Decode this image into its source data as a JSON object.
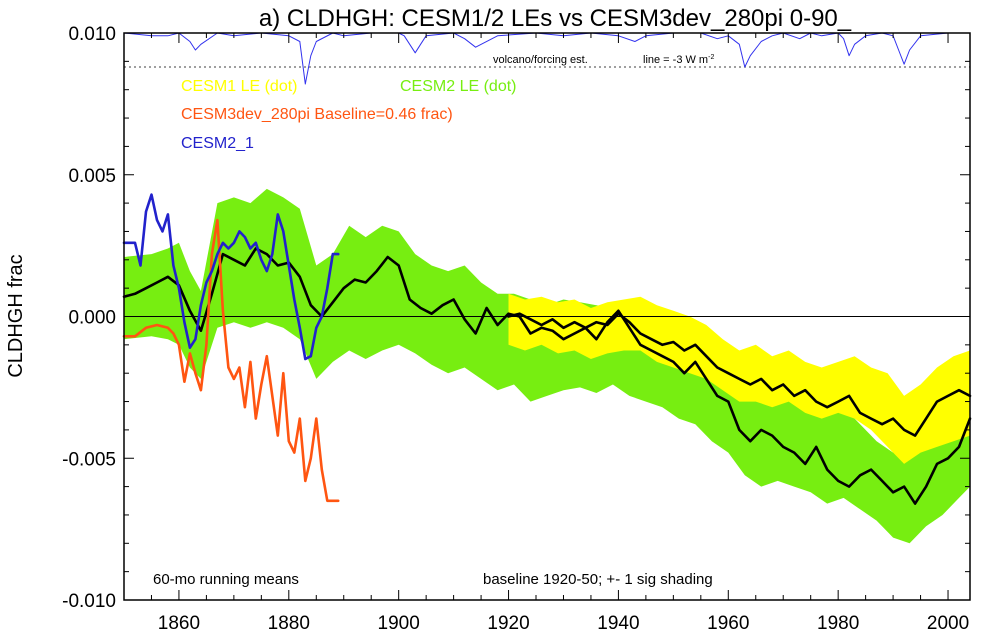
{
  "chart_data": {
    "type": "line",
    "title": "a) CLDHGH: CESM1/2 LEs vs CESM3dev_280pi 0-90_",
    "ylabel": "CLDHGH frac",
    "xlim": [
      1850,
      2004
    ],
    "ylim": [
      -0.01,
      0.01
    ],
    "x_ticks": [
      1860,
      1880,
      1900,
      1920,
      1940,
      1960,
      1980,
      2000
    ],
    "x_tick_labels": [
      "1860",
      "1880",
      "1900",
      "1920",
      "1940",
      "1960",
      "1980",
      "2000"
    ],
    "y_ticks": [
      0.01,
      0.005,
      0.0,
      -0.005,
      -0.01
    ],
    "y_tick_labels": [
      "0.010",
      "0.005",
      "0.000",
      "-0.005",
      "-0.010"
    ],
    "annotations": {
      "volcano": "volcano/forcing est.",
      "line_note": "line = -3 W m",
      "line_note_sup": "-2",
      "running": "60-mo running means",
      "baseline": "baseline 1920-50; +- 1 sig shading"
    },
    "legend": [
      {
        "label": "CESM1 LE (dot)",
        "color": "#ffff00"
      },
      {
        "label": "CESM2 LE (dot)",
        "color": "#77ee11"
      },
      {
        "label": "CESM3dev_280pi Baseline=0.46 frac)",
        "color": "#ff5511"
      },
      {
        "label": "CESM2_1",
        "color": "#2222cc"
      }
    ],
    "colors": {
      "cesm1_band": "#ffff00",
      "cesm2_band": "#77ee11",
      "ensemble_mean": "#000000",
      "cesm3dev": "#ff5511",
      "cesm2_1": "#2222cc",
      "volcano": "#3333ee",
      "zero_line": "#000000",
      "dotted_line": "#666666"
    },
    "series": [
      {
        "name": "CESM2 LE (dot)",
        "kind": "band",
        "x": [
          1850,
          1855,
          1858,
          1860,
          1862,
          1864,
          1867,
          1870,
          1873,
          1876,
          1879,
          1882,
          1885,
          1888,
          1891,
          1894,
          1897,
          1900,
          1903,
          1906,
          1909,
          1912,
          1915,
          1918,
          1921,
          1924,
          1927,
          1930,
          1933,
          1936,
          1939,
          1942,
          1945,
          1948,
          1951,
          1954,
          1957,
          1960,
          1963,
          1966,
          1969,
          1972,
          1975,
          1978,
          1981,
          1984,
          1987,
          1990,
          1993,
          1996,
          1999,
          2002,
          2004
        ],
        "upper": [
          0.0021,
          0.0022,
          0.0024,
          0.0026,
          0.0016,
          0.0009,
          0.004,
          0.0042,
          0.004,
          0.0045,
          0.0042,
          0.0038,
          0.0018,
          0.0022,
          0.0032,
          0.0028,
          0.0032,
          0.003,
          0.0022,
          0.0018,
          0.0016,
          0.0018,
          0.0012,
          0.0008,
          0.0008,
          0.0006,
          0.0004,
          0.0006,
          0.0005,
          0.0004,
          0.0003,
          0.0004,
          0.0002,
          0.0,
          -0.0006,
          -0.0008,
          -0.0014,
          -0.0016,
          -0.0024,
          -0.0028,
          -0.0026,
          -0.003,
          -0.0028,
          -0.0034,
          -0.0032,
          -0.0038,
          -0.0044,
          -0.0048,
          -0.0044,
          -0.0042,
          -0.0038,
          -0.0036,
          -0.0034
        ],
        "lower": [
          -0.0008,
          -0.0007,
          -0.0008,
          -0.001,
          -0.0018,
          -0.0022,
          -0.0004,
          -0.0002,
          -0.0004,
          -0.0002,
          -0.0004,
          -0.0008,
          -0.0022,
          -0.0016,
          -0.0012,
          -0.0015,
          -0.0012,
          -0.001,
          -0.0013,
          -0.0017,
          -0.002,
          -0.0018,
          -0.0022,
          -0.0026,
          -0.0024,
          -0.003,
          -0.0028,
          -0.0026,
          -0.0025,
          -0.0027,
          -0.0024,
          -0.0028,
          -0.003,
          -0.0032,
          -0.0036,
          -0.0038,
          -0.0044,
          -0.0048,
          -0.0056,
          -0.006,
          -0.0058,
          -0.006,
          -0.0062,
          -0.0066,
          -0.0064,
          -0.0068,
          -0.0072,
          -0.0078,
          -0.008,
          -0.0074,
          -0.007,
          -0.0064,
          -0.006
        ]
      },
      {
        "name": "CESM1 LE (dot)",
        "kind": "band",
        "x": [
          1920,
          1923,
          1926,
          1929,
          1932,
          1935,
          1938,
          1941,
          1944,
          1947,
          1950,
          1953,
          1956,
          1959,
          1962,
          1965,
          1968,
          1971,
          1974,
          1977,
          1980,
          1983,
          1986,
          1989,
          1992,
          1995,
          1998,
          2001,
          2004
        ],
        "upper": [
          0.0008,
          0.0006,
          0.0007,
          0.0005,
          0.0006,
          0.0003,
          0.0005,
          0.0006,
          0.0007,
          0.0004,
          0.0002,
          0.0,
          -0.0003,
          -0.0008,
          -0.0012,
          -0.001,
          -0.0014,
          -0.0012,
          -0.0016,
          -0.0018,
          -0.0016,
          -0.0014,
          -0.0018,
          -0.002,
          -0.0028,
          -0.0024,
          -0.0018,
          -0.0014,
          -0.0012
        ],
        "lower": [
          -0.001,
          -0.0012,
          -0.001,
          -0.0013,
          -0.0012,
          -0.0015,
          -0.0013,
          -0.0012,
          -0.0012,
          -0.0016,
          -0.0018,
          -0.002,
          -0.0022,
          -0.0026,
          -0.003,
          -0.003,
          -0.0032,
          -0.003,
          -0.0034,
          -0.0036,
          -0.0034,
          -0.0036,
          -0.004,
          -0.0046,
          -0.0052,
          -0.0048,
          -0.0046,
          -0.0044,
          -0.0042
        ]
      },
      {
        "name": "CESM2 LE mean",
        "kind": "line",
        "x": [
          1850,
          1852,
          1854,
          1856,
          1858,
          1860,
          1862,
          1864,
          1866,
          1868,
          1870,
          1872,
          1874,
          1876,
          1878,
          1880,
          1882,
          1884,
          1886,
          1888,
          1890,
          1892,
          1894,
          1896,
          1898,
          1900,
          1902,
          1904,
          1906,
          1908,
          1910,
          1912,
          1914,
          1916,
          1918,
          1920,
          1922,
          1924,
          1926,
          1928,
          1930,
          1932,
          1934,
          1936,
          1938,
          1940,
          1942,
          1944,
          1946,
          1948,
          1950,
          1952,
          1954,
          1956,
          1958,
          1960,
          1962,
          1964,
          1966,
          1968,
          1970,
          1972,
          1974,
          1976,
          1978,
          1980,
          1982,
          1984,
          1986,
          1988,
          1990,
          1992,
          1994,
          1996,
          1998,
          2000,
          2002,
          2004
        ],
        "y": [
          0.0007,
          0.0008,
          0.001,
          0.0012,
          0.0014,
          0.0011,
          0.0002,
          -0.0005,
          0.0008,
          0.0022,
          0.002,
          0.0018,
          0.0024,
          0.0022,
          0.0018,
          0.0019,
          0.0014,
          0.0004,
          0.0,
          0.0005,
          0.001,
          0.0013,
          0.0012,
          0.0016,
          0.0021,
          0.0018,
          0.0006,
          0.0003,
          0.0001,
          0.0004,
          0.0006,
          -0.0001,
          -0.0006,
          0.0003,
          -0.0003,
          0.0001,
          0.0,
          -0.0006,
          -0.0004,
          -0.0005,
          -0.0008,
          -0.0006,
          -0.0004,
          -0.0008,
          -0.0002,
          0.0002,
          -0.0004,
          -0.001,
          -0.0012,
          -0.0014,
          -0.0016,
          -0.002,
          -0.0016,
          -0.0022,
          -0.0028,
          -0.003,
          -0.004,
          -0.0044,
          -0.004,
          -0.0042,
          -0.0046,
          -0.0048,
          -0.0052,
          -0.0046,
          -0.0054,
          -0.0058,
          -0.006,
          -0.0056,
          -0.0054,
          -0.0058,
          -0.0062,
          -0.006,
          -0.0066,
          -0.006,
          -0.0052,
          -0.005,
          -0.0046,
          -0.0036
        ]
      },
      {
        "name": "CESM1 LE mean",
        "kind": "line",
        "x": [
          1920,
          1922,
          1924,
          1926,
          1928,
          1930,
          1932,
          1934,
          1936,
          1938,
          1940,
          1942,
          1944,
          1946,
          1948,
          1950,
          1952,
          1954,
          1956,
          1958,
          1960,
          1962,
          1964,
          1966,
          1968,
          1970,
          1972,
          1974,
          1976,
          1978,
          1980,
          1982,
          1984,
          1986,
          1988,
          1990,
          1992,
          1994,
          1996,
          1998,
          2000,
          2002,
          2004
        ],
        "y": [
          0.0,
          0.0001,
          -0.0001,
          -0.0003,
          -0.0001,
          -0.0004,
          -0.0002,
          -0.0004,
          -0.0002,
          -0.0003,
          0.0001,
          -0.0002,
          -0.0006,
          -0.0008,
          -0.001,
          -0.0009,
          -0.0012,
          -0.001,
          -0.0014,
          -0.0018,
          -0.002,
          -0.0022,
          -0.0024,
          -0.0022,
          -0.0026,
          -0.0024,
          -0.0028,
          -0.0026,
          -0.003,
          -0.0032,
          -0.003,
          -0.0028,
          -0.0034,
          -0.0036,
          -0.0038,
          -0.0036,
          -0.004,
          -0.0042,
          -0.0036,
          -0.003,
          -0.0028,
          -0.0026,
          -0.0028
        ]
      },
      {
        "name": "CESM3dev_280pi Baseline=0.46 frac)",
        "kind": "line",
        "x": [
          1850,
          1852,
          1854,
          1856,
          1858,
          1859,
          1860,
          1861,
          1862,
          1863,
          1864,
          1865,
          1866,
          1867,
          1868,
          1869,
          1870,
          1871,
          1872,
          1873,
          1874,
          1875,
          1876,
          1877,
          1878,
          1879,
          1880,
          1881,
          1882,
          1883,
          1884,
          1885,
          1886,
          1887,
          1888,
          1889
        ],
        "y": [
          -0.0007,
          -0.0007,
          -0.0004,
          -0.0003,
          -0.0004,
          -0.0006,
          -0.001,
          -0.0023,
          -0.0013,
          -0.002,
          -0.0026,
          -0.001,
          0.0022,
          0.0034,
          0.0002,
          -0.0018,
          -0.0022,
          -0.0018,
          -0.0032,
          -0.0016,
          -0.0036,
          -0.0024,
          -0.0014,
          -0.0028,
          -0.0042,
          -0.002,
          -0.0044,
          -0.0048,
          -0.0036,
          -0.0058,
          -0.005,
          -0.0036,
          -0.0054,
          -0.0065,
          -0.0065,
          -0.0065
        ]
      },
      {
        "name": "CESM2_1",
        "kind": "line",
        "x": [
          1850,
          1851,
          1852,
          1853,
          1854,
          1855,
          1856,
          1857,
          1858,
          1859,
          1860,
          1861,
          1862,
          1863,
          1864,
          1865,
          1866,
          1867,
          1868,
          1869,
          1870,
          1871,
          1872,
          1873,
          1874,
          1875,
          1876,
          1877,
          1878,
          1879,
          1880,
          1881,
          1882,
          1883,
          1884,
          1885,
          1886,
          1887,
          1888,
          1889
        ],
        "y": [
          0.0026,
          0.0026,
          0.0026,
          0.0018,
          0.0037,
          0.0043,
          0.0034,
          0.003,
          0.0036,
          0.0018,
          0.001,
          -0.0002,
          -0.0011,
          -0.0008,
          0.0004,
          0.0012,
          0.0016,
          0.0022,
          0.0026,
          0.0024,
          0.0026,
          0.003,
          0.0028,
          0.0024,
          0.0026,
          0.002,
          0.0016,
          0.0022,
          0.0036,
          0.003,
          0.0018,
          0.0006,
          -0.0004,
          -0.0015,
          -0.0014,
          -0.0004,
          0.0,
          0.001,
          0.0022,
          0.0022
        ]
      },
      {
        "name": "volcano/forcing est.",
        "kind": "line",
        "x": [
          1850,
          1855,
          1858,
          1860,
          1862,
          1863,
          1864,
          1867,
          1870,
          1875,
          1880,
          1882,
          1883,
          1884,
          1885,
          1888,
          1890,
          1895,
          1900,
          1901,
          1902,
          1903,
          1904,
          1905,
          1910,
          1912,
          1914,
          1918,
          1925,
          1930,
          1935,
          1940,
          1943,
          1945,
          1950,
          1955,
          1958,
          1960,
          1962,
          1963,
          1964,
          1966,
          1968,
          1970,
          1973,
          1975,
          1977,
          1980,
          1981,
          1982,
          1983,
          1985,
          1988,
          1990,
          1991,
          1992,
          1993,
          1995,
          2000,
          2004
        ],
        "y": [
          0.01,
          0.0099,
          0.0099,
          0.01,
          0.0097,
          0.0094,
          0.0096,
          0.01,
          0.0099,
          0.01,
          0.0099,
          0.0097,
          0.0082,
          0.0092,
          0.0097,
          0.01,
          0.0099,
          0.01,
          0.01,
          0.0099,
          0.0096,
          0.0093,
          0.0096,
          0.0099,
          0.01,
          0.0098,
          0.0095,
          0.0099,
          0.01,
          0.0099,
          0.01,
          0.0099,
          0.0097,
          0.0099,
          0.01,
          0.01,
          0.0098,
          0.0099,
          0.0096,
          0.0088,
          0.0092,
          0.0097,
          0.0099,
          0.01,
          0.0098,
          0.01,
          0.0099,
          0.01,
          0.0098,
          0.0092,
          0.0096,
          0.0099,
          0.01,
          0.0099,
          0.0094,
          0.0089,
          0.0094,
          0.0099,
          0.01,
          0.01
        ]
      }
    ],
    "volcano_dotted_y": 0.0088
  }
}
